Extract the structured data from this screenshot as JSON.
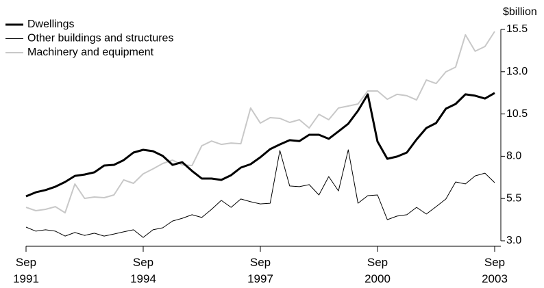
{
  "chart_data": {
    "type": "line",
    "y_axis_label": "$billion",
    "y_axis_side": "right",
    "categories": [
      "Sep 1991",
      null,
      null,
      null,
      null,
      null,
      null,
      null,
      null,
      null,
      null,
      null,
      "Sep 1994",
      null,
      null,
      null,
      null,
      null,
      null,
      null,
      null,
      null,
      null,
      null,
      "Sep 1997",
      null,
      null,
      null,
      null,
      null,
      null,
      null,
      null,
      null,
      null,
      null,
      "Sep 2000",
      null,
      null,
      null,
      null,
      null,
      null,
      null,
      null,
      null,
      null,
      null,
      "Sep 2003"
    ],
    "series": [
      {
        "name": "Dwellings",
        "color": "#000000",
        "width": 3,
        "values": [
          5.63,
          5.87,
          6.0,
          6.2,
          6.48,
          6.84,
          6.92,
          7.05,
          7.45,
          7.49,
          7.77,
          8.22,
          8.38,
          8.3,
          8.02,
          7.49,
          7.65,
          7.13,
          6.68,
          6.68,
          6.6,
          6.88,
          7.33,
          7.53,
          7.94,
          8.42,
          8.7,
          8.95,
          8.9,
          9.27,
          9.27,
          9.03,
          9.47,
          9.92,
          10.69,
          11.66,
          8.87,
          7.85,
          7.98,
          8.22,
          8.99,
          9.67,
          9.96,
          10.81,
          11.09,
          11.66,
          11.58,
          11.41,
          11.74
        ]
      },
      {
        "name": "Other buildings and structures",
        "color": "#000000",
        "width": 1,
        "values": [
          3.81,
          3.57,
          3.65,
          3.57,
          3.28,
          3.49,
          3.32,
          3.45,
          3.28,
          3.4,
          3.53,
          3.65,
          3.2,
          3.65,
          3.77,
          4.17,
          4.33,
          4.54,
          4.38,
          4.86,
          5.39,
          4.98,
          5.47,
          5.31,
          5.18,
          5.22,
          8.34,
          6.24,
          6.2,
          6.32,
          5.71,
          6.8,
          5.95,
          8.38,
          5.22,
          5.67,
          5.71,
          4.25,
          4.46,
          4.54,
          4.98,
          4.58,
          5.02,
          5.47,
          6.48,
          6.36,
          6.84,
          7.0,
          6.44
        ]
      },
      {
        "name": "Machinery and equipment",
        "color": "#c8c8c8",
        "width": 2,
        "values": [
          4.98,
          4.78,
          4.86,
          5.02,
          4.66,
          6.36,
          5.51,
          5.59,
          5.55,
          5.71,
          6.6,
          6.4,
          6.96,
          7.25,
          7.57,
          7.77,
          7.49,
          7.45,
          8.62,
          8.9,
          8.7,
          8.78,
          8.74,
          10.85,
          9.96,
          10.28,
          10.24,
          10.0,
          10.16,
          9.67,
          10.48,
          10.16,
          10.85,
          10.97,
          11.09,
          11.86,
          11.86,
          11.37,
          11.66,
          11.58,
          11.33,
          12.51,
          12.3,
          12.99,
          13.27,
          15.18,
          14.21,
          14.49,
          15.38
        ]
      }
    ],
    "ylim": [
      3.0,
      15.5
    ],
    "yticks": [
      {
        "value": 3,
        "label": "3.0"
      },
      5.5,
      {
        "value": 8,
        "label": "8.0"
      },
      10.5,
      {
        "value": 13,
        "label": "13.0"
      },
      15.5
    ],
    "legend": "top-left",
    "grid": false
  }
}
